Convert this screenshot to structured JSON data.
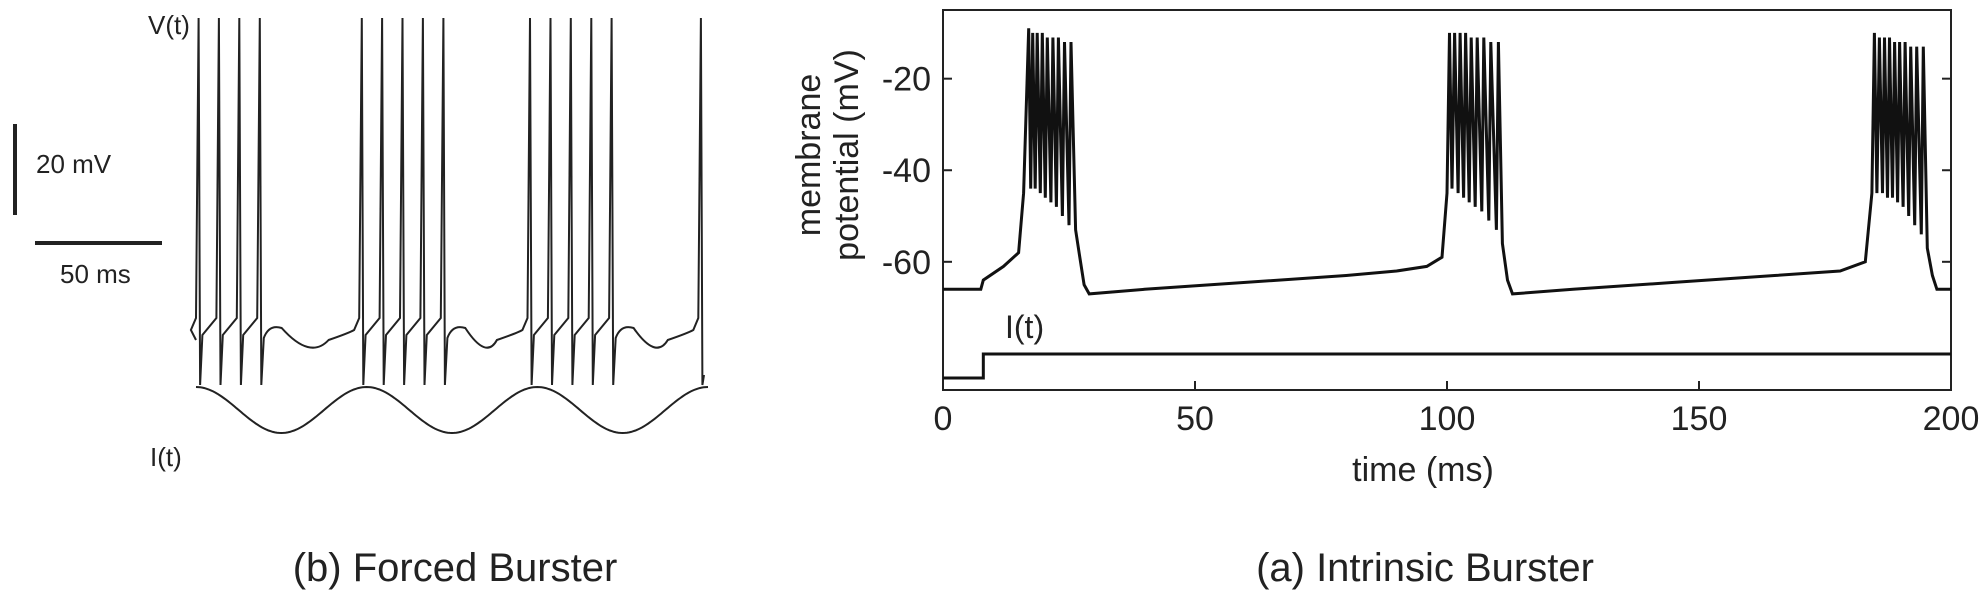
{
  "chart_data": [
    {
      "type": "line",
      "caption": "(b) Forced Burster",
      "trace_labels": {
        "voltage": "V(t)",
        "current": "I(t)"
      },
      "scale_bars": {
        "voltage": "20 mV",
        "time": "50 ms"
      },
      "bursts": [
        {
          "start": 0,
          "spikes": 4,
          "spike_interval": 8
        },
        {
          "start": 64,
          "spikes": 5,
          "spike_interval": 8
        },
        {
          "start": 130,
          "spikes": 5,
          "spike_interval": 8
        },
        {
          "start": 197,
          "spikes": 1,
          "spike_interval": 8
        }
      ],
      "current": {
        "shape": "sinusoid",
        "cycles": 3
      }
    },
    {
      "type": "line",
      "caption": "(a) Intrinsic Burster",
      "xlabel": "time (ms)",
      "ylabel": "membrane potential (mV)",
      "xlim": [
        0,
        200
      ],
      "ylim": [
        -88,
        -5
      ],
      "xticks": [
        0,
        50,
        100,
        150,
        200
      ],
      "yticks": [
        -20,
        -40,
        -60
      ],
      "current_label": "I(t)",
      "series": [
        {
          "values": [
            [
              0,
              -66
            ],
            [
              7.5,
              -66
            ],
            [
              8,
              -64
            ],
            [
              12,
              -61
            ],
            [
              15,
              -58
            ],
            [
              16,
              -45
            ],
            [
              17,
              -9
            ],
            [
              17.4,
              -44
            ],
            [
              17.8,
              -10
            ],
            [
              18.3,
              -44
            ],
            [
              18.7,
              -10
            ],
            [
              19.3,
              -45
            ],
            [
              19.7,
              -10
            ],
            [
              20.3,
              -46
            ],
            [
              20.7,
              -11
            ],
            [
              21.4,
              -47
            ],
            [
              21.8,
              -11
            ],
            [
              22.5,
              -48
            ],
            [
              22.9,
              -11
            ],
            [
              23.7,
              -50
            ],
            [
              24.1,
              -12
            ],
            [
              25,
              -52
            ],
            [
              25.4,
              -12
            ],
            [
              26.3,
              -53
            ],
            [
              27,
              -58
            ],
            [
              28,
              -65
            ],
            [
              29,
              -67
            ],
            [
              40,
              -66
            ],
            [
              60,
              -64.5
            ],
            [
              80,
              -63
            ],
            [
              90,
              -62
            ],
            [
              96,
              -61
            ],
            [
              99,
              -59
            ],
            [
              100,
              -45
            ],
            [
              100.5,
              -10
            ],
            [
              101,
              -44
            ],
            [
              101.5,
              -10
            ],
            [
              102.2,
              -45
            ],
            [
              102.6,
              -10
            ],
            [
              103.3,
              -46
            ],
            [
              103.7,
              -10
            ],
            [
              104.4,
              -47
            ],
            [
              104.8,
              -11
            ],
            [
              105.6,
              -48
            ],
            [
              106,
              -11
            ],
            [
              106.9,
              -49
            ],
            [
              107.3,
              -11
            ],
            [
              108.3,
              -51
            ],
            [
              108.7,
              -12
            ],
            [
              109.8,
              -53
            ],
            [
              110.2,
              -12
            ],
            [
              111,
              -56
            ],
            [
              112,
              -64
            ],
            [
              113,
              -67
            ],
            [
              125,
              -66
            ],
            [
              145,
              -64.5
            ],
            [
              165,
              -63
            ],
            [
              178,
              -62
            ],
            [
              183,
              -60
            ],
            [
              184.3,
              -45
            ],
            [
              184.8,
              -10
            ],
            [
              185.3,
              -45
            ],
            [
              185.8,
              -11
            ],
            [
              186.4,
              -45
            ],
            [
              186.8,
              -11
            ],
            [
              187.4,
              -46
            ],
            [
              187.8,
              -11
            ],
            [
              188.4,
              -46
            ],
            [
              188.8,
              -12
            ],
            [
              189.4,
              -47
            ],
            [
              189.8,
              -12
            ],
            [
              190.5,
              -48
            ],
            [
              190.9,
              -12
            ],
            [
              191.6,
              -50
            ],
            [
              192,
              -13
            ],
            [
              192.8,
              -52
            ],
            [
              193.2,
              -13
            ],
            [
              194.1,
              -54
            ],
            [
              194.5,
              -13
            ],
            [
              195.3,
              -57
            ],
            [
              196.3,
              -63
            ],
            [
              197.2,
              -66
            ],
            [
              200,
              -66
            ]
          ]
        }
      ],
      "current_levels": {
        "before": "low",
        "after": "high",
        "step_time": 8
      }
    }
  ]
}
